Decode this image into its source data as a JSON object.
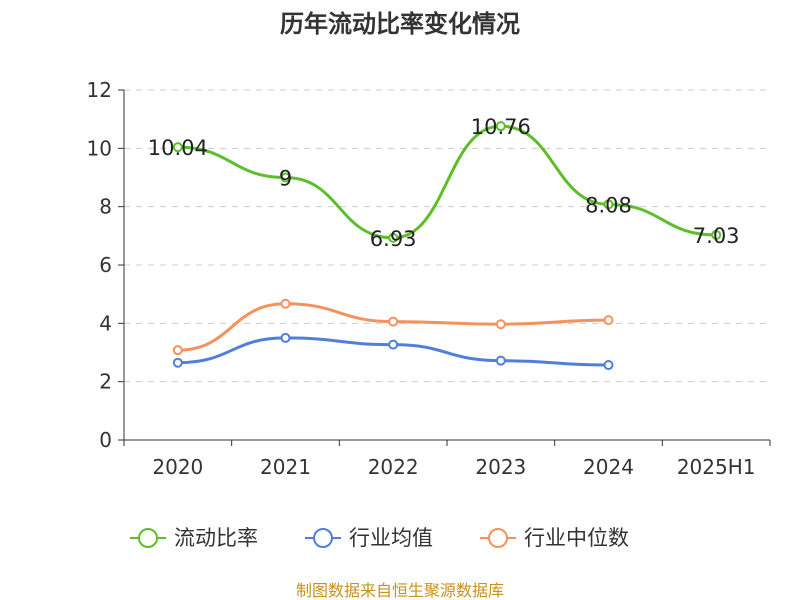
{
  "title": "历年流动比率变化情况",
  "source": "制图数据来自恒生聚源数据库",
  "colors": {
    "liudong": "#5dbe2c",
    "avg": "#4f7fdb",
    "median": "#f5925c",
    "grid": "#cccccc",
    "axis": "#333333"
  },
  "chart_data": {
    "type": "line",
    "title": "历年流动比率变化情况",
    "xlabel": "",
    "ylabel": "",
    "categories": [
      "2020",
      "2021",
      "2022",
      "2023",
      "2024",
      "2025H1"
    ],
    "ylim": [
      0,
      12
    ],
    "yticks": [
      0,
      2,
      4,
      6,
      8,
      10,
      12
    ],
    "grid": true,
    "legend_position": "bottom",
    "series": [
      {
        "name": "流动比率",
        "color": "#5dbe2c",
        "values": [
          10.04,
          9,
          6.93,
          10.76,
          8.08,
          7.03
        ],
        "labels": [
          "10.04",
          "9",
          "6.93",
          "10.76",
          "8.08",
          "7.03"
        ]
      },
      {
        "name": "行业均值",
        "color": "#4f7fdb",
        "values": [
          2.65,
          3.5,
          3.27,
          2.72,
          2.57,
          null
        ]
      },
      {
        "name": "行业中位数",
        "color": "#f5925c",
        "values": [
          3.08,
          4.67,
          4.06,
          3.97,
          4.11,
          null
        ]
      }
    ]
  }
}
